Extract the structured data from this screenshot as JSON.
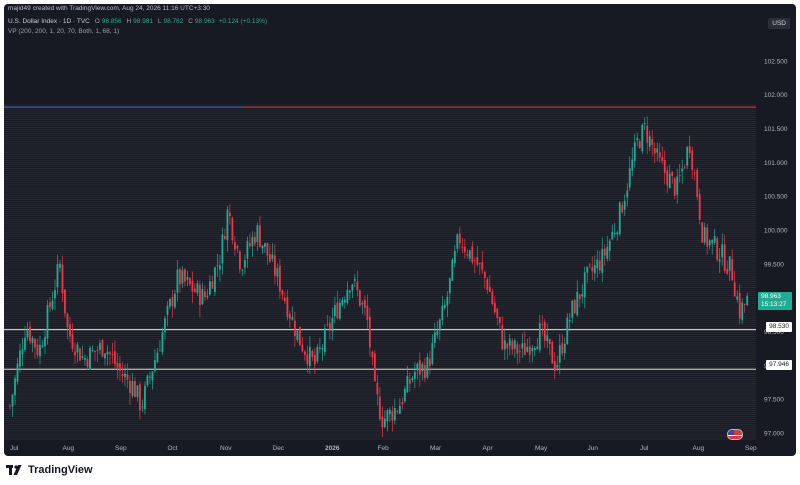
{
  "header": {
    "author_line": "majid49 created with TradingView.com, Aug 24, 2026 11:16 UTC+3:30",
    "symbol": "U.S. Dollar Index · 1D · TVC",
    "open_label": "O",
    "open": "98.856",
    "high_label": "H",
    "high": "98.981",
    "low_label": "L",
    "low": "98.762",
    "close_label": "C",
    "close": "98.963",
    "change": "+0.124 (+0.13%)",
    "indicator": "VP (200, 200, 1, 20, 70, Both, 1, 68, 1)"
  },
  "currency": "USD",
  "price_tags": {
    "current_price": "98.963",
    "countdown": "15:13:27",
    "level_a": "98.530",
    "level_b": "97.946"
  },
  "footer": {
    "brand": "TradingView"
  },
  "colors": {
    "background": "#181a23",
    "up": "#22ab94",
    "down": "#f23645",
    "grid": "#2a2e39",
    "blue_line": "#2962ff",
    "red_line": "#f23645",
    "level_line": "#ffffff"
  },
  "chart_data": {
    "type": "candlestick",
    "title": "U.S. Dollar Index · 1D · TVC",
    "xlabel": "",
    "ylabel": "",
    "ylim": [
      96.9,
      102.9
    ],
    "y_ticks": [
      "102.500",
      "102.000",
      "101.500",
      "101.000",
      "100.500",
      "100.000",
      "99.500",
      "99.000",
      "98.500",
      "98.000",
      "97.500",
      "97.000"
    ],
    "x_ticks": [
      "Jul",
      "Aug",
      "Sep",
      "Oct",
      "Nov",
      "Dec",
      "2026",
      "Feb",
      "Mar",
      "Apr",
      "May",
      "Jun",
      "Jul",
      "Aug",
      "Sep"
    ],
    "horizontal_levels": [
      {
        "value": 101.82,
        "color": "#f23645"
      },
      {
        "value": 101.82,
        "color": "#2962ff",
        "end_month": "Dec"
      },
      {
        "value": 98.53,
        "color": "#ffffff"
      },
      {
        "value": 97.946,
        "color": "#ffffff"
      }
    ],
    "close_path": [
      {
        "m": 0.0,
        "v": 97.4
      },
      {
        "m": 0.3,
        "v": 98.6
      },
      {
        "m": 0.55,
        "v": 98.2
      },
      {
        "m": 0.95,
        "v": 99.5
      },
      {
        "m": 1.1,
        "v": 98.5
      },
      {
        "m": 1.4,
        "v": 98.1
      },
      {
        "m": 1.8,
        "v": 98.3
      },
      {
        "m": 2.1,
        "v": 97.9
      },
      {
        "m": 2.35,
        "v": 97.7
      },
      {
        "m": 2.5,
        "v": 97.4
      },
      {
        "m": 2.8,
        "v": 98.2
      },
      {
        "m": 3.2,
        "v": 99.3
      },
      {
        "m": 3.7,
        "v": 99.0
      },
      {
        "m": 4.0,
        "v": 99.6
      },
      {
        "m": 4.15,
        "v": 100.3
      },
      {
        "m": 4.4,
        "v": 99.5
      },
      {
        "m": 4.7,
        "v": 100.0
      },
      {
        "m": 5.1,
        "v": 99.3
      },
      {
        "m": 5.5,
        "v": 98.4
      },
      {
        "m": 5.8,
        "v": 98.0
      },
      {
        "m": 6.2,
        "v": 98.8
      },
      {
        "m": 6.5,
        "v": 99.3
      },
      {
        "m": 6.8,
        "v": 98.7
      },
      {
        "m": 6.95,
        "v": 97.6
      },
      {
        "m": 7.1,
        "v": 97.2
      },
      {
        "m": 7.4,
        "v": 97.4
      },
      {
        "m": 7.7,
        "v": 97.9
      },
      {
        "m": 7.95,
        "v": 98.0
      },
      {
        "m": 8.3,
        "v": 98.9
      },
      {
        "m": 8.55,
        "v": 99.9
      },
      {
        "m": 8.9,
        "v": 99.5
      },
      {
        "m": 9.1,
        "v": 99.2
      },
      {
        "m": 9.4,
        "v": 98.3
      },
      {
        "m": 9.75,
        "v": 98.2
      },
      {
        "m": 10.1,
        "v": 98.5
      },
      {
        "m": 10.4,
        "v": 98.0
      },
      {
        "m": 10.7,
        "v": 98.8
      },
      {
        "m": 11.0,
        "v": 99.3
      },
      {
        "m": 11.3,
        "v": 99.6
      },
      {
        "m": 11.6,
        "v": 100.2
      },
      {
        "m": 11.95,
        "v": 101.3
      },
      {
        "m": 12.1,
        "v": 101.5
      },
      {
        "m": 12.35,
        "v": 101.0
      },
      {
        "m": 12.7,
        "v": 100.6
      },
      {
        "m": 12.95,
        "v": 101.3
      },
      {
        "m": 13.1,
        "v": 100.5
      },
      {
        "m": 13.2,
        "v": 99.9
      },
      {
        "m": 13.5,
        "v": 99.7
      },
      {
        "m": 13.75,
        "v": 99.4
      },
      {
        "m": 13.9,
        "v": 98.8
      },
      {
        "m": 14.05,
        "v": 98.963
      }
    ]
  }
}
